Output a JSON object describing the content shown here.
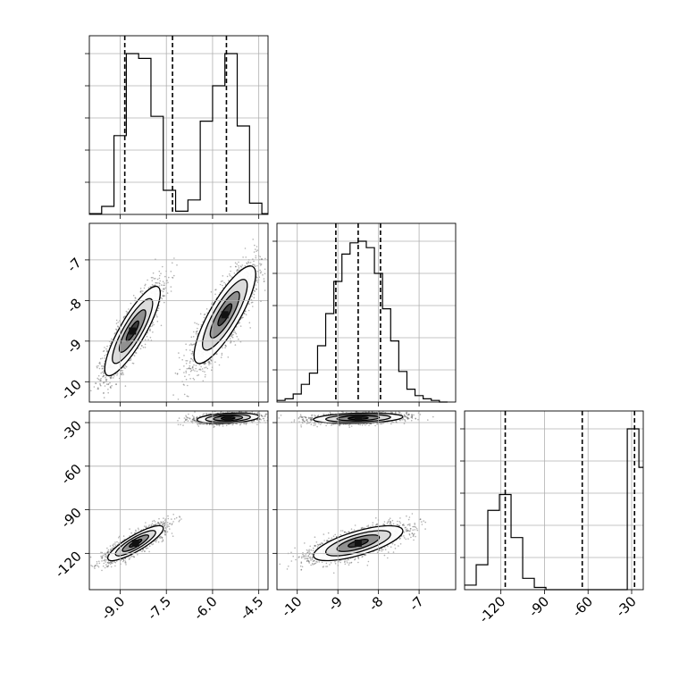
{
  "chart_data": {
    "type": "corner",
    "title": "",
    "grid": true,
    "colors": {
      "line": "#000000",
      "grid": "#b0b0b0",
      "points": "#555555"
    },
    "variables": [
      {
        "range": [
          -10.0,
          -4.2
        ],
        "ticks": [
          -9.0,
          -7.5,
          -6.0,
          -4.5
        ],
        "tick_labels": [
          "-9.0",
          "-7.5",
          "-6.0",
          "-4.5"
        ]
      },
      {
        "range": [
          -10.5,
          -6.1
        ],
        "ticks": [
          -10,
          -9,
          -8,
          -7
        ],
        "tick_labels": [
          "-10",
          "-9",
          "-8",
          "-7"
        ]
      },
      {
        "range": [
          -145,
          -22
        ],
        "ticks": [
          -120,
          -90,
          -60,
          -30
        ],
        "tick_labels": [
          "-120",
          "-90",
          "-60",
          "-30"
        ]
      }
    ],
    "histograms": [
      {
        "var": 0,
        "edges": [
          -10.0,
          -9.6,
          -9.2,
          -8.8,
          -8.4,
          -8.0,
          -7.6,
          -7.2,
          -6.8,
          -6.4,
          -6.0,
          -5.6,
          -5.2,
          -4.8,
          -4.4,
          -4.0
        ],
        "counts": [
          0.5,
          5,
          49,
          100,
          97,
          61,
          15,
          2,
          9,
          58,
          80,
          100,
          55,
          7,
          0.5
        ],
        "quantiles": [
          -8.85,
          -7.3,
          -5.55
        ]
      },
      {
        "var": 1,
        "edges": [
          -10.5,
          -10.3,
          -10.1,
          -9.9,
          -9.7,
          -9.5,
          -9.3,
          -9.1,
          -8.9,
          -8.7,
          -8.5,
          -8.3,
          -8.1,
          -7.9,
          -7.7,
          -7.5,
          -7.3,
          -7.1,
          -6.9,
          -6.7,
          -6.5,
          -6.3
        ],
        "counts": [
          1,
          2,
          5,
          11,
          18,
          35,
          55,
          75,
          92,
          99,
          100,
          96,
          80,
          58,
          38,
          19,
          8,
          4,
          2,
          1,
          0
        ],
        "quantiles": [
          -9.05,
          -8.5,
          -7.95
        ]
      },
      {
        "var": 2,
        "edges": [
          -145,
          -137,
          -129,
          -121,
          -113,
          -105,
          -97,
          -89,
          -81,
          -73,
          -65,
          -57,
          -49,
          -41,
          -33,
          -25,
          -17
        ],
        "counts": [
          2,
          11,
          35,
          42,
          23,
          5,
          1,
          0,
          0,
          0,
          0,
          0,
          0,
          0,
          71,
          54
        ],
        "quantiles": [
          -117,
          -64,
          -28
        ]
      }
    ],
    "joint_plots": [
      {
        "x_var": 0,
        "y_var": 1,
        "clusters": [
          {
            "mean": [
              -8.6,
              -8.75
            ],
            "sd": [
              0.45,
              0.55
            ],
            "rho": 0.85
          },
          {
            "mean": [
              -5.6,
              -8.35
            ],
            "sd": [
              0.5,
              0.6
            ],
            "rho": 0.83
          }
        ]
      },
      {
        "x_var": 0,
        "y_var": 2,
        "clusters": [
          {
            "mean": [
              -8.5,
              -113
            ],
            "sd": [
              0.45,
              6
            ],
            "rho": 0.85
          },
          {
            "mean": [
              -5.5,
              -27
            ],
            "sd": [
              0.5,
              1.8
            ],
            "rho": 0.3
          }
        ]
      },
      {
        "x_var": 1,
        "y_var": 2,
        "clusters": [
          {
            "mean": [
              -8.5,
              -113
            ],
            "sd": [
              0.55,
              6
            ],
            "rho": 0.7
          },
          {
            "mean": [
              -8.5,
              -27
            ],
            "sd": [
              0.55,
              1.8
            ],
            "rho": 0.25
          }
        ]
      }
    ]
  }
}
